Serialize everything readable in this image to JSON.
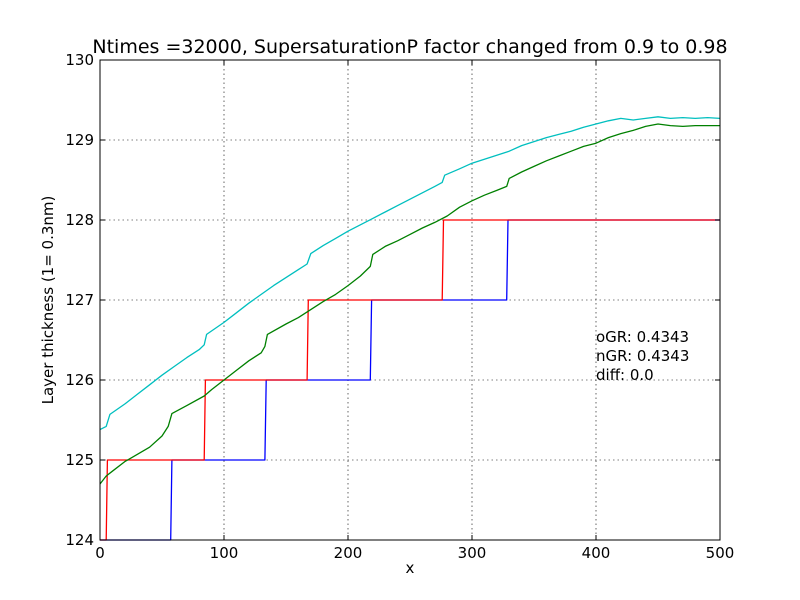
{
  "chart_data": {
    "type": "line",
    "title": "Ntimes =32000, SupersaturationP factor changed from 0.9 to 0.98",
    "xlabel": "x",
    "ylabel": "Layer thickness (1= 0.3nm)",
    "xlim": [
      0,
      500
    ],
    "ylim": [
      124,
      130
    ],
    "xticks": [
      0,
      100,
      200,
      300,
      400,
      500
    ],
    "yticks": [
      124,
      125,
      126,
      127,
      128,
      129,
      130
    ],
    "grid": true,
    "annotations": [
      "oGR: 0.4343",
      "nGR: 0.4343",
      "diff: 0.0"
    ],
    "series": [
      {
        "color": "#0000ff",
        "style": "step",
        "x": [
          0,
          57,
          58,
          133,
          134,
          218,
          219,
          328,
          329,
          500
        ],
        "y": [
          124,
          124,
          125,
          125,
          126,
          126,
          127,
          127,
          128,
          128
        ]
      },
      {
        "color": "#ff0000",
        "style": "step",
        "x": [
          0,
          5,
          6,
          84,
          85,
          167,
          168,
          276,
          277,
          500
        ],
        "y": [
          124,
          124,
          125,
          125,
          126,
          126,
          127,
          127,
          128,
          128
        ]
      },
      {
        "color": "#008000",
        "style": "line",
        "x": [
          0,
          5,
          10,
          20,
          30,
          40,
          50,
          55,
          58,
          70,
          84,
          90,
          100,
          110,
          120,
          130,
          133,
          135,
          150,
          160,
          170,
          180,
          190,
          200,
          210,
          218,
          220,
          230,
          240,
          250,
          260,
          270,
          280,
          290,
          300,
          310,
          320,
          328,
          330,
          340,
          350,
          360,
          370,
          380,
          390,
          400,
          410,
          420,
          430,
          440,
          450,
          460,
          470,
          480,
          490,
          500
        ],
        "y": [
          124.7,
          124.8,
          124.86,
          124.98,
          125.07,
          125.16,
          125.3,
          125.42,
          125.58,
          125.68,
          125.8,
          125.88,
          126.0,
          126.12,
          126.24,
          126.34,
          126.42,
          126.57,
          126.7,
          126.78,
          126.88,
          126.98,
          127.07,
          127.18,
          127.3,
          127.42,
          127.57,
          127.67,
          127.74,
          127.82,
          127.9,
          127.97,
          128.05,
          128.16,
          128.24,
          128.31,
          128.37,
          128.42,
          128.52,
          128.6,
          128.67,
          128.74,
          128.8,
          128.86,
          128.92,
          128.96,
          129.03,
          129.08,
          129.12,
          129.17,
          129.2,
          129.18,
          129.17,
          129.18,
          129.18,
          129.18
        ]
      },
      {
        "color": "#00bfbf",
        "style": "line",
        "x": [
          0,
          5,
          8,
          20,
          30,
          40,
          50,
          60,
          70,
          80,
          84,
          86,
          100,
          110,
          120,
          130,
          140,
          150,
          160,
          167,
          170,
          180,
          190,
          200,
          210,
          220,
          230,
          240,
          250,
          260,
          270,
          276,
          278,
          290,
          300,
          310,
          320,
          330,
          340,
          350,
          360,
          370,
          380,
          390,
          400,
          410,
          420,
          430,
          440,
          450,
          460,
          470,
          480,
          490,
          500
        ],
        "y": [
          125.38,
          125.42,
          125.57,
          125.7,
          125.82,
          125.94,
          126.06,
          126.17,
          126.28,
          126.38,
          126.44,
          126.57,
          126.72,
          126.84,
          126.96,
          127.07,
          127.18,
          127.28,
          127.38,
          127.45,
          127.58,
          127.68,
          127.77,
          127.86,
          127.94,
          128.02,
          128.1,
          128.18,
          128.26,
          128.34,
          128.42,
          128.47,
          128.56,
          128.64,
          128.71,
          128.76,
          128.81,
          128.86,
          128.93,
          128.98,
          129.03,
          129.07,
          129.11,
          129.16,
          129.2,
          129.24,
          129.27,
          129.25,
          129.27,
          129.29,
          129.27,
          129.28,
          129.27,
          129.28,
          129.27
        ]
      }
    ]
  }
}
